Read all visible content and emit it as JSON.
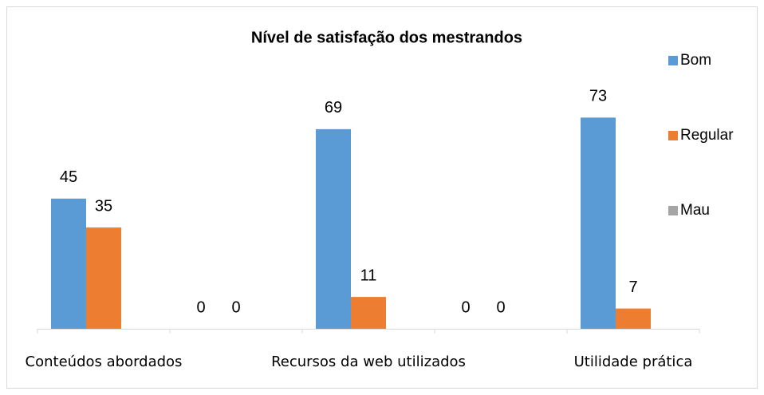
{
  "chart_data": {
    "type": "bar",
    "title": "Nível de satisfação dos mestrandos",
    "categories": [
      "Conteúdos abordados",
      null,
      "Recursos da web utilizados",
      null,
      "Utilidade prática"
    ],
    "series": [
      {
        "name": "Bom",
        "color": "#5b9bd5",
        "values": [
          45,
          0,
          69,
          0,
          73
        ]
      },
      {
        "name": "Regular",
        "color": "#ed7d31",
        "values": [
          35,
          0,
          11,
          0,
          7
        ]
      },
      {
        "name": "Mau",
        "color": "#a5a5a5",
        "values": [
          null,
          null,
          null,
          null,
          null
        ]
      }
    ],
    "ylim": [
      0,
      80
    ],
    "grid": false,
    "legend": "right"
  }
}
